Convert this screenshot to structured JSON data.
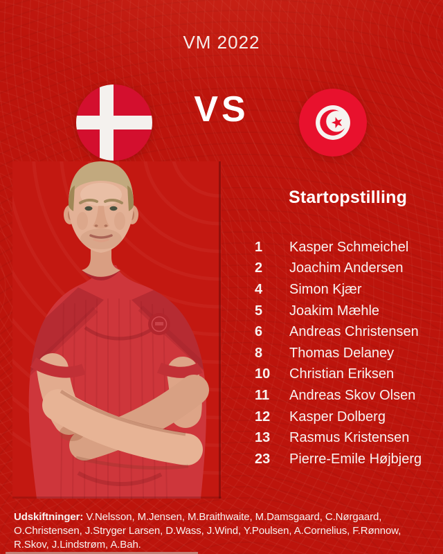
{
  "header": {
    "title": "VM 2022"
  },
  "matchup": {
    "vs_label": "VS",
    "home_flag_icon": "denmark-flag",
    "away_flag_icon": "tunisia-flag"
  },
  "photo": {
    "subject": "denmark-player-crossed-arms"
  },
  "lineup": {
    "heading": "Startopstilling",
    "players": [
      {
        "number": "1",
        "name": "Kasper Schmeichel"
      },
      {
        "number": "2",
        "name": "Joachim Andersen"
      },
      {
        "number": "4",
        "name": "Simon Kjær"
      },
      {
        "number": "5",
        "name": "Joakim Mæhle"
      },
      {
        "number": "6",
        "name": "Andreas Christensen"
      },
      {
        "number": "8",
        "name": "Thomas Delaney"
      },
      {
        "number": "10",
        "name": "Christian Eriksen"
      },
      {
        "number": "11",
        "name": "Andreas Skov Olsen"
      },
      {
        "number": "12",
        "name": "Kasper Dolberg"
      },
      {
        "number": "13",
        "name": "Rasmus Kristensen"
      },
      {
        "number": "23",
        "name": "Pierre-Emile Højbjerg"
      }
    ]
  },
  "substitutes": {
    "label": "Udskiftninger:",
    "names": "V.Nelsson, M.Jensen, M.Braithwaite, M.Damsgaard, C.Nørgaard, O.Christensen, J.Stryger Larsen, D.Wass, J.Wind, Y.Poulsen, A.Cornelius, F.Rønnow, R.Skov, J.Lindstrøm, A.Bah."
  },
  "colors": {
    "background": "#BD140C",
    "title_text": "#F5EDEB",
    "vs_text": "#FFFFFF",
    "heading_text": "#FFFFFF",
    "list_text": "#F8F2F0",
    "denmark_flag_red": "#D30F2E",
    "tunisia_flag_red": "#E8112D",
    "flag_cross_white": "#F4F1EE",
    "jersey_red": "#CE363B"
  }
}
